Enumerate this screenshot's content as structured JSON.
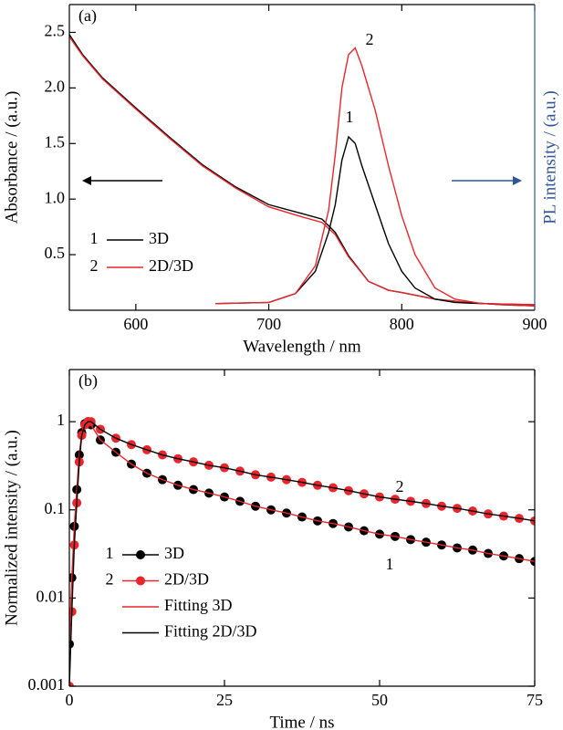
{
  "chart_data": [
    {
      "type": "line",
      "panel": "(a)",
      "xlabel": "Wavelength / nm",
      "ylabel": "Absorbance / (a.u.)",
      "y2label": "PL intensity / (a.u.)",
      "y2color": "#2f5597",
      "xlim": [
        550,
        900
      ],
      "xticks": [
        600,
        700,
        800,
        900
      ],
      "ylim": [
        0,
        2.75
      ],
      "yticks": [
        0.5,
        {
          "value": 1.0,
          "label": "1.0"
        },
        1.5,
        {
          "value": 2.0,
          "label": "2.0"
        },
        2.5
      ],
      "y2lim": [
        0,
        2.75
      ],
      "series": [
        {
          "label": "1",
          "name": "3D",
          "color": "#000000",
          "mode": "line",
          "x": [
            550,
            560,
            575,
            600,
            625,
            650,
            675,
            700,
            725,
            740,
            750,
            760,
            775,
            790,
            800,
            825,
            850,
            875,
            900
          ],
          "values": [
            2.48,
            2.3,
            2.09,
            1.82,
            1.56,
            1.31,
            1.11,
            0.95,
            0.87,
            0.82,
            0.7,
            0.49,
            0.26,
            0.18,
            0.16,
            0.1,
            0.07,
            0.05,
            0.04
          ]
        },
        {
          "label": "2",
          "name": "2D/3D",
          "color": "#e8262b",
          "mode": "line",
          "x": [
            550,
            560,
            575,
            600,
            625,
            650,
            675,
            700,
            725,
            740,
            750,
            760,
            775,
            790,
            800,
            825,
            850,
            875,
            900
          ],
          "values": [
            2.46,
            2.29,
            2.08,
            1.81,
            1.55,
            1.3,
            1.1,
            0.93,
            0.84,
            0.79,
            0.68,
            0.48,
            0.26,
            0.18,
            0.16,
            0.1,
            0.07,
            0.05,
            0.04
          ]
        },
        {
          "color": "#000000",
          "mode": "line",
          "axis": "y2",
          "x": [
            660,
            700,
            720,
            735,
            745,
            750,
            755,
            760,
            765,
            770,
            780,
            790,
            800,
            810,
            825,
            840,
            860,
            900
          ],
          "values": [
            0.06,
            0.07,
            0.15,
            0.35,
            0.7,
            0.95,
            1.35,
            1.56,
            1.5,
            1.3,
            0.95,
            0.6,
            0.35,
            0.2,
            0.1,
            0.07,
            0.06,
            0.05
          ]
        },
        {
          "color": "#e8262b",
          "mode": "line",
          "axis": "y2",
          "x": [
            660,
            700,
            720,
            735,
            745,
            750,
            755,
            760,
            765,
            770,
            780,
            790,
            800,
            810,
            825,
            840,
            860,
            900
          ],
          "values": [
            0.06,
            0.07,
            0.15,
            0.4,
            0.9,
            1.4,
            2.0,
            2.3,
            2.36,
            2.2,
            1.8,
            1.3,
            0.85,
            0.5,
            0.2,
            0.1,
            0.06,
            0.05
          ]
        }
      ],
      "annotations": [
        {
          "text": "2"
        },
        {
          "text": "1"
        }
      ]
    },
    {
      "type": "scatter",
      "panel": "(b)",
      "xlabel": "Time / ns",
      "ylabel": "Normalized intensity / (a.u.)",
      "yscale": "log",
      "xlim": [
        0,
        75
      ],
      "xticks": [
        0,
        25,
        50,
        75
      ],
      "ylim": [
        0.001,
        3.9
      ],
      "yticks": [
        0.001,
        0.01,
        0.1,
        1
      ],
      "series": [
        {
          "label": "1",
          "name": "3D",
          "color": "#000000",
          "mode": "markers",
          "x": [
            0,
            0.4,
            0.8,
            1.2,
            1.6,
            2,
            2.5,
            3,
            3.5,
            5,
            7.5,
            10,
            12.5,
            15,
            17.5,
            20,
            22.5,
            25,
            27.5,
            30,
            32.5,
            35,
            37.5,
            40,
            42.5,
            45,
            47.5,
            50,
            52.5,
            55,
            57.5,
            60,
            62.5,
            65,
            67.5,
            70,
            72.5,
            75
          ],
          "values": [
            0.003,
            0.017,
            0.065,
            0.17,
            0.42,
            0.75,
            0.95,
            1.0,
            0.92,
            0.62,
            0.45,
            0.33,
            0.26,
            0.22,
            0.19,
            0.17,
            0.155,
            0.14,
            0.125,
            0.11,
            0.1,
            0.092,
            0.083,
            0.075,
            0.07,
            0.064,
            0.058,
            0.053,
            0.05,
            0.046,
            0.043,
            0.04,
            0.037,
            0.035,
            0.032,
            0.03,
            0.028,
            0.026
          ]
        },
        {
          "label": "2",
          "name": "2D/3D",
          "color": "#e8262b",
          "mode": "markers",
          "x": [
            0,
            0.4,
            0.8,
            1.2,
            1.6,
            2,
            2.5,
            3,
            3.5,
            5,
            7.5,
            10,
            12.5,
            15,
            17.5,
            20,
            22.5,
            25,
            27.5,
            30,
            32.5,
            35,
            37.5,
            40,
            42.5,
            45,
            47.5,
            50,
            52.5,
            55,
            57.5,
            60,
            62.5,
            65,
            67.5,
            70,
            72.5,
            75
          ],
          "values": [
            0.001,
            0.007,
            0.04,
            0.12,
            0.35,
            0.7,
            0.92,
            1.0,
            1.0,
            0.82,
            0.65,
            0.55,
            0.48,
            0.42,
            0.38,
            0.35,
            0.32,
            0.3,
            0.275,
            0.25,
            0.235,
            0.22,
            0.205,
            0.19,
            0.178,
            0.165,
            0.152,
            0.14,
            0.132,
            0.125,
            0.118,
            0.11,
            0.104,
            0.097,
            0.09,
            0.085,
            0.08,
            0.075
          ]
        },
        {
          "name": "Fitting 3D",
          "color": "#e8262b",
          "mode": "line",
          "x": [
            0,
            0.4,
            0.8,
            1.2,
            1.6,
            2,
            2.5,
            3,
            3.5,
            5,
            7.5,
            10,
            12.5,
            15,
            17.5,
            20,
            22.5,
            25,
            27.5,
            30,
            32.5,
            35,
            37.5,
            40,
            42.5,
            45,
            47.5,
            50,
            52.5,
            55,
            57.5,
            60,
            62.5,
            65,
            67.5,
            70,
            72.5,
            75
          ],
          "values": [
            0.003,
            0.017,
            0.065,
            0.17,
            0.42,
            0.75,
            0.95,
            1.0,
            0.92,
            0.62,
            0.45,
            0.33,
            0.26,
            0.22,
            0.19,
            0.17,
            0.155,
            0.14,
            0.125,
            0.11,
            0.1,
            0.092,
            0.083,
            0.075,
            0.07,
            0.064,
            0.058,
            0.053,
            0.05,
            0.046,
            0.043,
            0.04,
            0.037,
            0.035,
            0.032,
            0.03,
            0.028,
            0.026
          ]
        },
        {
          "name": "Fitting 2D/3D",
          "color": "#000000",
          "mode": "line",
          "x": [
            0,
            0.4,
            0.8,
            1.2,
            1.6,
            2,
            2.5,
            3,
            3.5,
            5,
            7.5,
            10,
            12.5,
            15,
            17.5,
            20,
            22.5,
            25,
            27.5,
            30,
            32.5,
            35,
            37.5,
            40,
            42.5,
            45,
            47.5,
            50,
            52.5,
            55,
            57.5,
            60,
            62.5,
            65,
            67.5,
            70,
            72.5,
            75
          ],
          "values": [
            0.001,
            0.007,
            0.04,
            0.12,
            0.35,
            0.7,
            0.92,
            1.0,
            1.0,
            0.82,
            0.65,
            0.55,
            0.48,
            0.42,
            0.38,
            0.35,
            0.32,
            0.3,
            0.275,
            0.25,
            0.235,
            0.22,
            0.205,
            0.19,
            0.178,
            0.165,
            0.152,
            0.14,
            0.132,
            0.125,
            0.118,
            0.11,
            0.104,
            0.097,
            0.09,
            0.085,
            0.08,
            0.075
          ]
        }
      ],
      "annotations": [
        {
          "text": "2"
        },
        {
          "text": "1"
        }
      ]
    }
  ]
}
